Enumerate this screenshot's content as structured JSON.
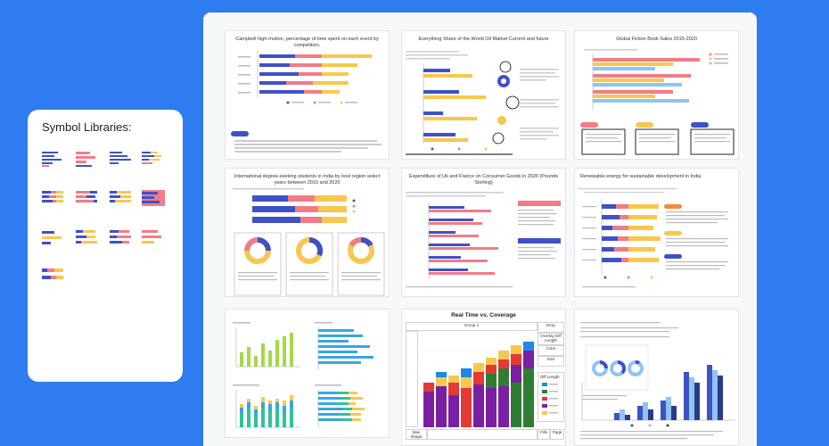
{
  "sidebar": {
    "title": "Symbol Libraries:"
  },
  "colors": {
    "background": "#2f7bf0",
    "blue": "#3f51c7",
    "pink": "#f27c86",
    "yellow": "#f9c74f",
    "sky": "#8ec5f2",
    "green": "#a5d84a",
    "orange": "#f48a3a"
  },
  "cards": [
    {
      "title": "Campbell high-motion, percentage of time spent on each event by competition."
    },
    {
      "title": "Everything Share of the World Oil Market Current and future"
    },
    {
      "title": "Global Fiction Book Sales 2015-2020"
    },
    {
      "title": "International degree-seeking students in India by host region select years between 2015 and 2020"
    },
    {
      "title": "Expenditure of Uk and France on Consumer Goods in 2020 (Pounds Sterling)"
    },
    {
      "title": "Renewable energy for sustainable development in India"
    },
    {
      "title": ""
    },
    {
      "title": "Real Time vs. Coverage",
      "group": "Group 1",
      "side": [
        "Drop",
        "Overlay Diff Length",
        "Color",
        "Size"
      ],
      "legend_title": "Diff Length",
      "footer": [
        "Max Shape",
        "Fills",
        "Page"
      ]
    },
    {
      "title": ""
    }
  ]
}
